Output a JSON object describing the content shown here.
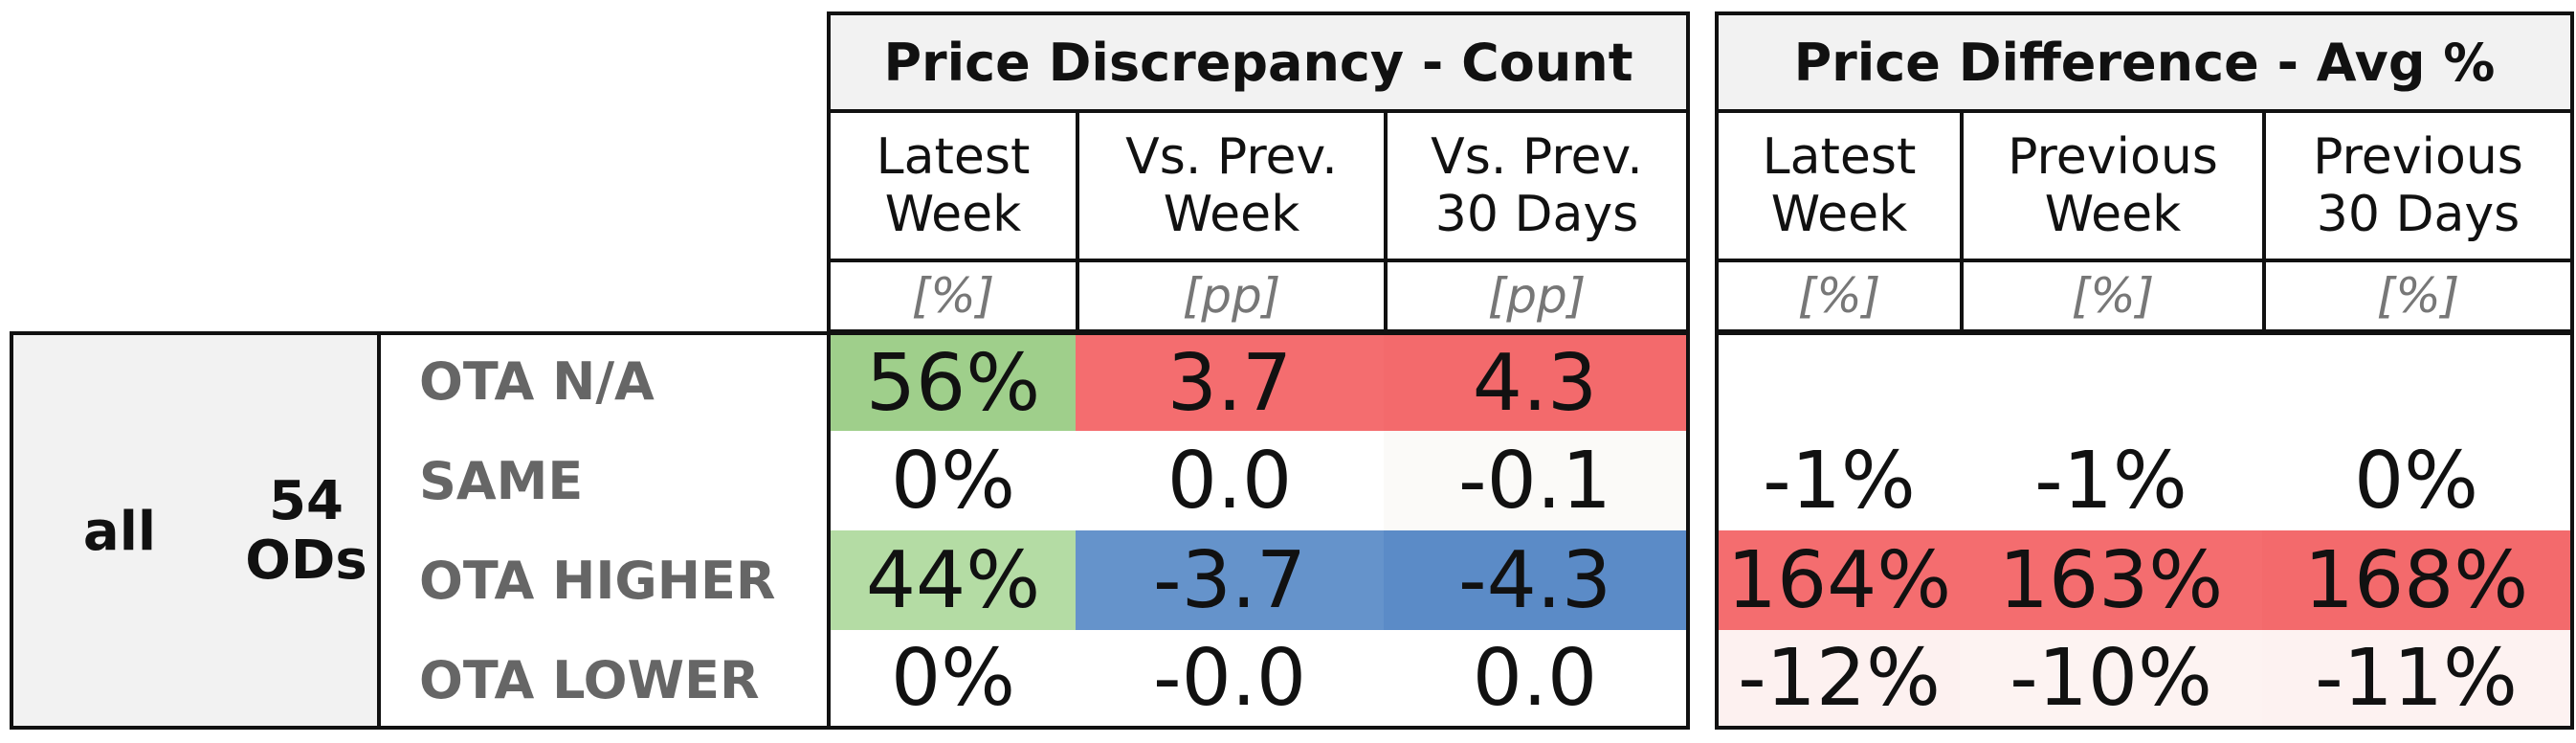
{
  "chart_data": {
    "type": "table",
    "sections": [
      {
        "title": "Price Discrepancy - Count",
        "columns": [
          {
            "label": "Latest\nWeek",
            "unit": "[%]"
          },
          {
            "label": "Vs. Prev.\nWeek",
            "unit": "[pp]"
          },
          {
            "label": "Vs. Prev.\n30 Days",
            "unit": "[pp]"
          }
        ],
        "rows": [
          {
            "values": [
              "56%",
              "3.7",
              "4.3"
            ],
            "colors": [
              "#9fcf8b",
              "#f46d6f",
              "#f36a6c"
            ]
          },
          {
            "values": [
              "0%",
              "0.0",
              "-0.1"
            ],
            "colors": [
              "#ffffff",
              "#ffffff",
              "#fbfaf8"
            ]
          },
          {
            "values": [
              "44%",
              "-3.7",
              "-4.3"
            ],
            "colors": [
              "#b4dca4",
              "#6593cb",
              "#5b8bc7"
            ]
          },
          {
            "values": [
              "0%",
              "-0.0",
              "0.0"
            ],
            "colors": [
              "#ffffff",
              "#ffffff",
              "#ffffff"
            ]
          }
        ]
      },
      {
        "title": "Price Difference - Avg %",
        "columns": [
          {
            "label": "Latest\nWeek",
            "unit": "[%]"
          },
          {
            "label": "Previous\nWeek",
            "unit": "[%]"
          },
          {
            "label": "Previous\n30 Days",
            "unit": "[%]"
          }
        ],
        "rows": [
          {
            "values": [
              "",
              "",
              ""
            ],
            "colors": [
              "#ffffff",
              "#ffffff",
              "#ffffff"
            ]
          },
          {
            "values": [
              "-1%",
              "-1%",
              "0%"
            ],
            "colors": [
              "#ffffff",
              "#ffffff",
              "#ffffff"
            ]
          },
          {
            "values": [
              "164%",
              "163%",
              "168%"
            ],
            "colors": [
              "#f46d6f",
              "#f46d6f",
              "#f36a6c"
            ]
          },
          {
            "values": [
              "-12%",
              "-10%",
              "-11%"
            ],
            "colors": [
              "#fdf1f0",
              "#fdf3f2",
              "#fdf2f1"
            ]
          }
        ]
      }
    ],
    "row_labels": [
      "OTA N/A",
      "SAME",
      "OTA HIGHER",
      "OTA LOWER"
    ],
    "group": {
      "segment": "all",
      "count": "54\nODs"
    }
  }
}
